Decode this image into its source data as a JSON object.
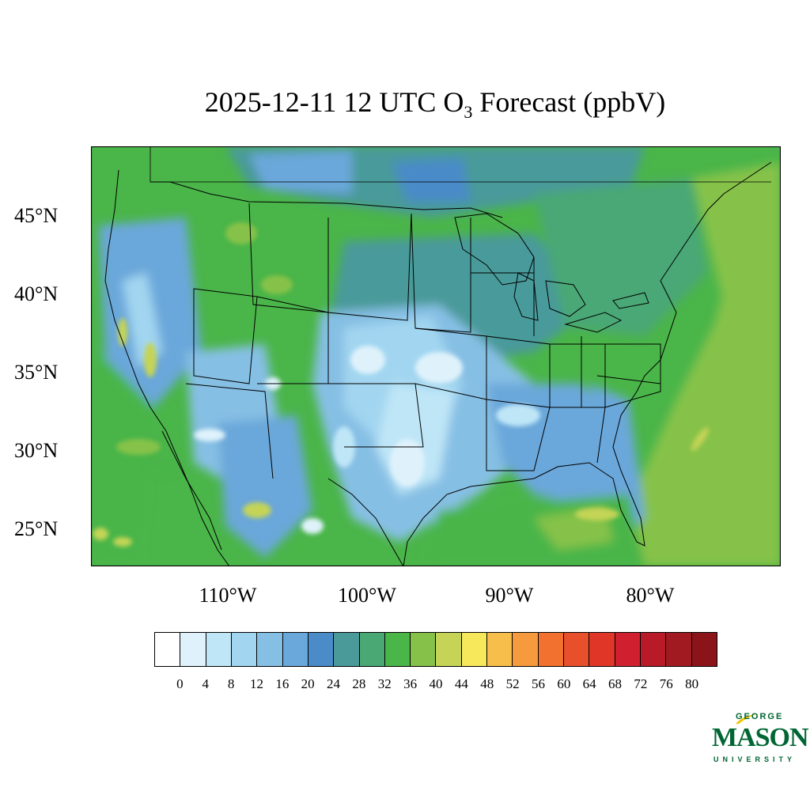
{
  "title": {
    "prefix": "2025-12-11 12 UTC O",
    "subscript": "3",
    "suffix": " Forecast (ppbV)"
  },
  "axes": {
    "lat_labels": [
      "45°N",
      "40°N",
      "35°N",
      "30°N",
      "25°N"
    ],
    "lon_labels": [
      "110°W",
      "100°W",
      "90°W",
      "80°W"
    ]
  },
  "colorbar": {
    "colors": [
      "#ffffff",
      "#dff2fb",
      "#bfe6f7",
      "#a2d6f0",
      "#86bfe4",
      "#6aa7da",
      "#4a8bc8",
      "#4a9a9a",
      "#4aa874",
      "#4ab549",
      "#86c24a",
      "#c5d457",
      "#f6e85a",
      "#f7be4c",
      "#f59b3d",
      "#f2712f",
      "#e84f2b",
      "#e03627",
      "#d02030",
      "#b81a28",
      "#a11a22",
      "#8a1419"
    ],
    "tick_labels": [
      "0",
      "4",
      "8",
      "12",
      "16",
      "20",
      "24",
      "28",
      "32",
      "36",
      "40",
      "44",
      "48",
      "52",
      "56",
      "60",
      "64",
      "68",
      "72",
      "76",
      "80"
    ]
  },
  "logo": {
    "top": "GEORGE",
    "main": "MASON",
    "bottom": "UNIVERSITY"
  }
}
